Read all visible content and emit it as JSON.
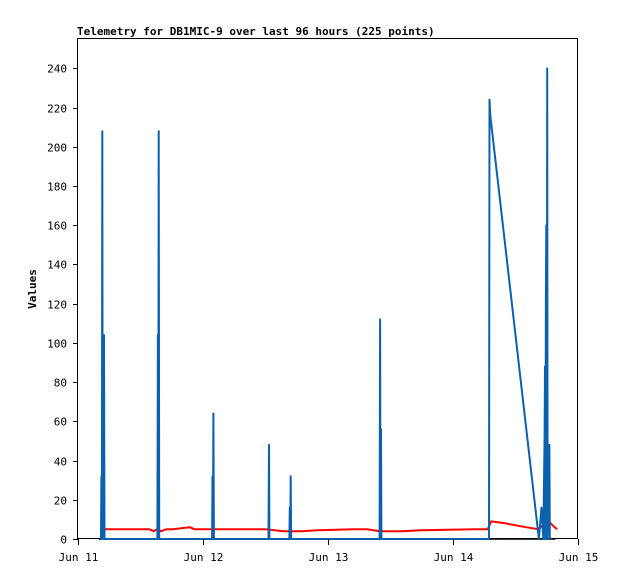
{
  "chart_data": {
    "type": "line",
    "title": "Telemetry for DB1MIC-9 over last 96 hours (225 points)",
    "xlabel": "",
    "ylabel": "Values",
    "xlim": [
      "2024-06-11T00:00",
      "2024-06-15T00:00"
    ],
    "ylim": [
      0,
      255
    ],
    "x_ticks": [
      {
        "label": "Jun 11",
        "value": "2024-06-11T00:00"
      },
      {
        "label": "Jun 12",
        "value": "2024-06-12T00:00"
      },
      {
        "label": "Jun 13",
        "value": "2024-06-13T00:00"
      },
      {
        "label": "Jun 14",
        "value": "2024-06-14T00:00"
      },
      {
        "label": "Jun 15",
        "value": "2024-06-15T00:00"
      }
    ],
    "y_ticks": [
      0,
      20,
      40,
      60,
      80,
      100,
      120,
      140,
      160,
      180,
      200,
      220,
      240
    ],
    "grid": false,
    "legend": "none",
    "series": [
      {
        "color": "#000000",
        "points": [
          [
            "2024-06-11T04:00",
            0
          ],
          [
            "2024-06-14T19:40",
            0
          ]
        ]
      },
      {
        "color": "#ff0000",
        "points": [
          [
            "2024-06-11T04:20",
            5
          ],
          [
            "2024-06-11T13:40",
            5
          ],
          [
            "2024-06-11T14:30",
            4
          ],
          [
            "2024-06-11T15:10",
            5
          ],
          [
            "2024-06-11T16:00",
            4
          ],
          [
            "2024-06-11T17:00",
            5
          ],
          [
            "2024-06-11T18:10",
            5
          ],
          [
            "2024-06-11T21:30",
            6
          ],
          [
            "2024-06-11T22:20",
            5
          ],
          [
            "2024-06-12T05:00",
            5
          ],
          [
            "2024-06-12T08:50",
            5
          ],
          [
            "2024-06-12T12:00",
            5
          ],
          [
            "2024-06-12T15:30",
            4
          ],
          [
            "2024-06-12T19:00",
            4
          ],
          [
            "2024-06-12T22:00",
            4.5
          ],
          [
            "2024-06-13T05:00",
            5
          ],
          [
            "2024-06-13T07:30",
            5
          ],
          [
            "2024-06-13T10:00",
            4
          ],
          [
            "2024-06-13T14:00",
            4
          ],
          [
            "2024-06-13T18:00",
            4.5
          ],
          [
            "2024-06-14T04:00",
            5
          ],
          [
            "2024-06-14T06:40",
            5
          ],
          [
            "2024-06-14T07:20",
            9
          ],
          [
            "2024-06-14T10:00",
            8
          ],
          [
            "2024-06-14T14:00",
            6
          ],
          [
            "2024-06-14T16:20",
            5
          ],
          [
            "2024-06-14T18:20",
            9
          ],
          [
            "2024-06-14T19:30",
            6
          ],
          [
            "2024-06-14T20:00",
            5
          ]
        ]
      },
      {
        "color": "#0b60b0",
        "points": [
          [
            "2024-06-11T04:25",
            0
          ],
          [
            "2024-06-11T04:30",
            32
          ],
          [
            "2024-06-11T04:35",
            0
          ],
          [
            "2024-06-11T04:40",
            208
          ],
          [
            "2024-06-11T04:45",
            0
          ],
          [
            "2024-06-11T05:00",
            104
          ],
          [
            "2024-06-11T05:05",
            0
          ],
          [
            "2024-06-11T15:15",
            0
          ],
          [
            "2024-06-11T15:20",
            104
          ],
          [
            "2024-06-11T15:25",
            0
          ],
          [
            "2024-06-11T15:30",
            208
          ],
          [
            "2024-06-11T15:35",
            0
          ],
          [
            "2024-06-12T01:45",
            0
          ],
          [
            "2024-06-12T01:50",
            32
          ],
          [
            "2024-06-12T01:55",
            0
          ],
          [
            "2024-06-12T02:00",
            64
          ],
          [
            "2024-06-12T02:05",
            0
          ],
          [
            "2024-06-12T12:35",
            0
          ],
          [
            "2024-06-12T12:40",
            48
          ],
          [
            "2024-06-12T12:45",
            0
          ],
          [
            "2024-06-12T16:35",
            0
          ],
          [
            "2024-06-12T16:40",
            16
          ],
          [
            "2024-06-12T16:45",
            0
          ],
          [
            "2024-06-12T16:50",
            32
          ],
          [
            "2024-06-12T16:55",
            0
          ],
          [
            "2024-06-13T09:55",
            0
          ],
          [
            "2024-06-13T10:00",
            112
          ],
          [
            "2024-06-13T10:05",
            0
          ],
          [
            "2024-06-13T10:10",
            56
          ],
          [
            "2024-06-13T10:15",
            0
          ],
          [
            "2024-06-14T06:55",
            0
          ],
          [
            "2024-06-14T07:00",
            224
          ],
          [
            "2024-06-14T07:10",
            216
          ],
          [
            "2024-06-14T16:30",
            0
          ],
          [
            "2024-06-14T17:00",
            16
          ],
          [
            "2024-06-14T17:20",
            0
          ],
          [
            "2024-06-14T17:35",
            52
          ],
          [
            "2024-06-14T17:40",
            88
          ],
          [
            "2024-06-14T17:45",
            0
          ],
          [
            "2024-06-14T17:50",
            124
          ],
          [
            "2024-06-14T17:55",
            160
          ],
          [
            "2024-06-14T18:00",
            0
          ],
          [
            "2024-06-14T18:05",
            240
          ],
          [
            "2024-06-14T18:10",
            0
          ],
          [
            "2024-06-14T18:30",
            48
          ],
          [
            "2024-06-14T18:35",
            0
          ]
        ]
      }
    ]
  }
}
